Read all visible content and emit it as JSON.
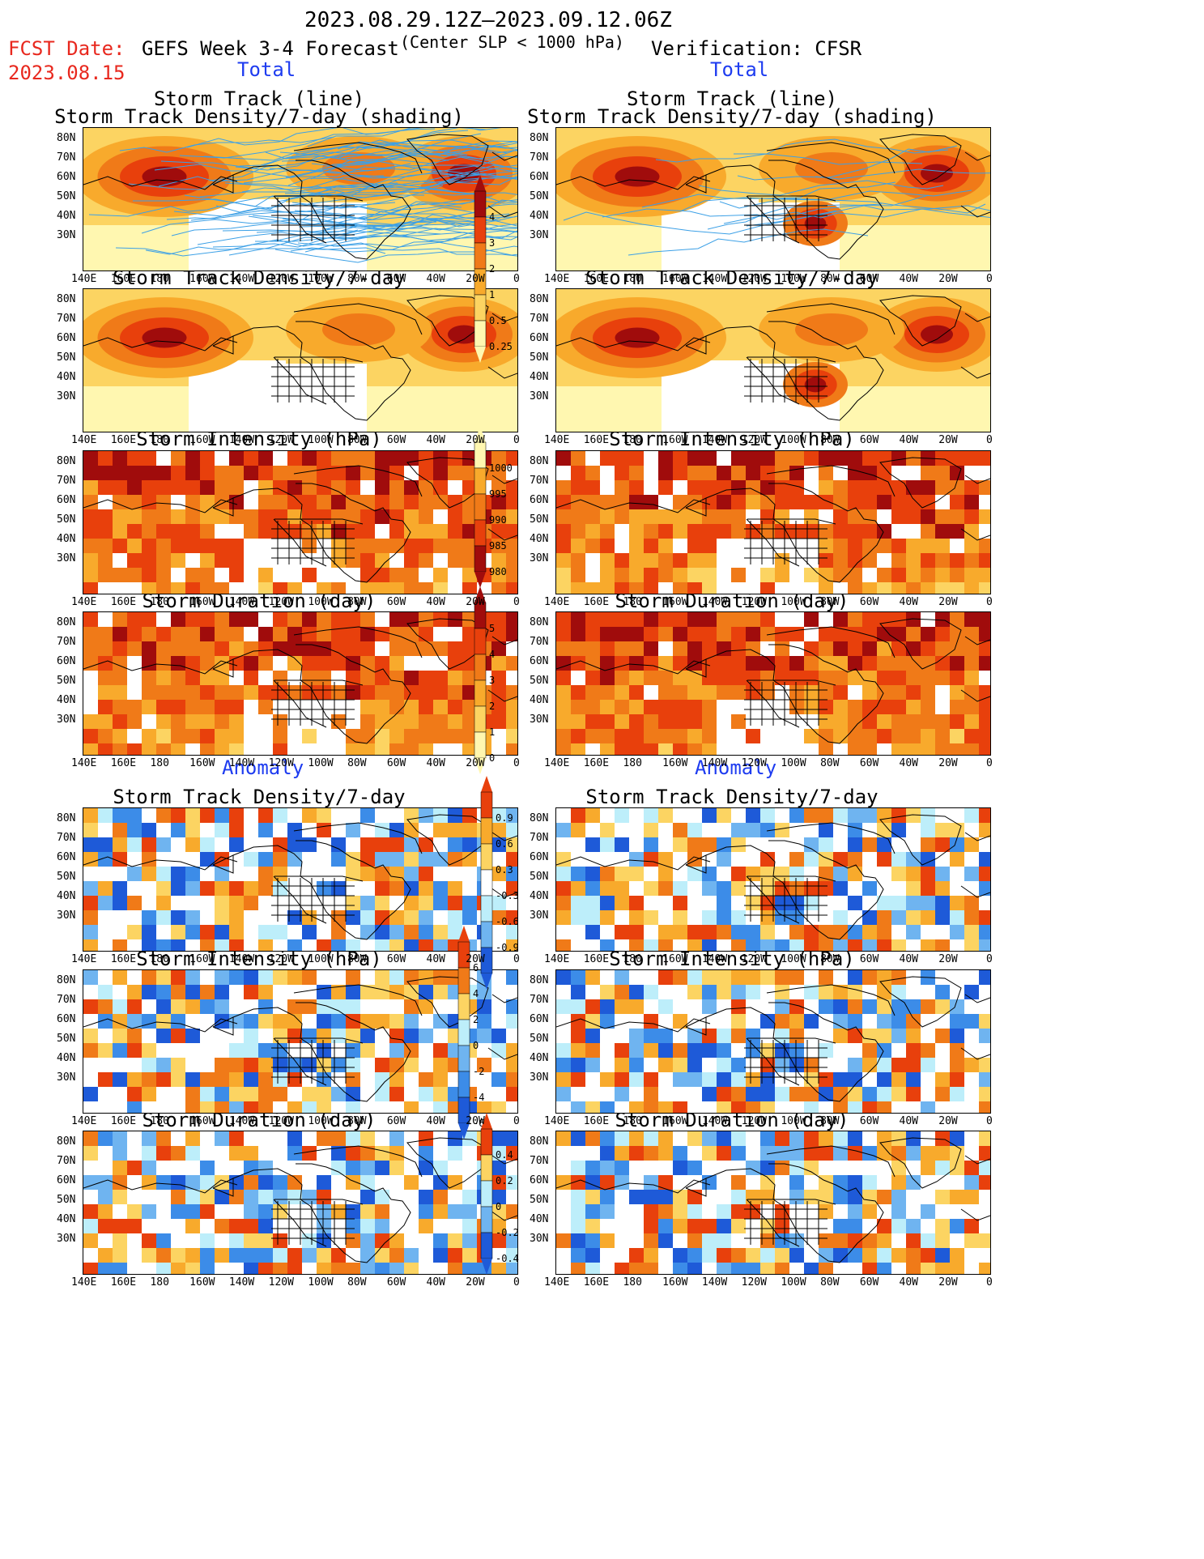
{
  "header": {
    "date_range": "2023.08.29.12Z–2023.09.12.06Z",
    "fcst_label": "FCST Date:",
    "fcst_date": "2023.08.15",
    "forecast_title": "GEFS Week 3-4 Forecast",
    "criterion": "(Center SLP < 1000 hPa)",
    "verification": "Verification: CFSR"
  },
  "sections": {
    "total_left": "Total",
    "total_right": "Total",
    "anomaly_left": "Anomaly",
    "anomaly_right": "Anomaly"
  },
  "panel_titles": {
    "track_line": "Storm Track (line)",
    "track_shading": "Storm Track Density/7-day (shading)",
    "density": "Storm Track Density/7-day",
    "intensity": "Storm Intensity (hPa)",
    "duration": "Storm Duration (day)"
  },
  "axes": {
    "x_ticks": [
      "140E",
      "160E",
      "180",
      "160W",
      "140W",
      "120W",
      "100W",
      "80W",
      "60W",
      "40W",
      "20W",
      "0"
    ],
    "y_ticks": [
      "80N",
      "70N",
      "60N",
      "50N",
      "40N",
      "30N"
    ]
  },
  "colorbars": {
    "density_total": [
      "4",
      "3",
      "2",
      "1",
      "0.5",
      "0.25"
    ],
    "intensity_total": [
      "1000",
      "995",
      "990",
      "985",
      "980"
    ],
    "duration_total": [
      "5",
      "4",
      "3",
      "2",
      "1",
      "0"
    ],
    "density_anom": [
      "0.9",
      "0.6",
      "0.3",
      "-0.3",
      "-0.6",
      "-0.9"
    ],
    "intensity_anom": [
      "6",
      "4",
      "2",
      "0",
      "-2",
      "-4",
      "-6"
    ],
    "duration_anom": [
      "0.4",
      "0.2",
      "0",
      "-0.2",
      "-0.4"
    ]
  },
  "colors": {
    "yellow_light": "#fff7b0",
    "yellow": "#fcd462",
    "orange_light": "#f8aa2c",
    "orange": "#f07a18",
    "red_orange": "#e8400c",
    "dark_red": "#a00c0c",
    "blue_light": "#bdeefa",
    "blue": "#6fb4f0",
    "blue_mid": "#3c8ce8",
    "blue_dark": "#1e5ad8",
    "track_blue": "#3ca0e6",
    "header_red": "#e8281e",
    "section_blue": "#1e3cf0"
  }
}
